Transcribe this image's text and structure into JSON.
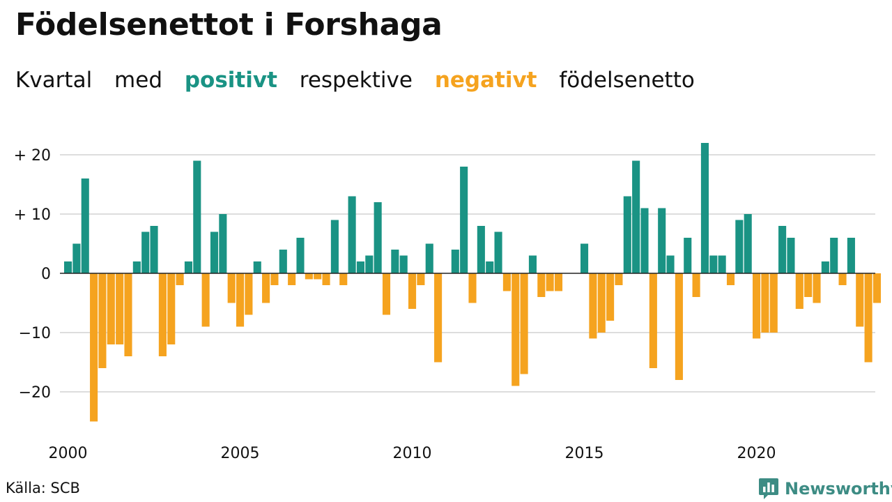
{
  "title": "Födelsenettot i Forshaga",
  "subtitle": {
    "w1": "Kvartal",
    "w2": "med",
    "w3": "positivt",
    "w4": "respektive",
    "w5": "negativt",
    "w6": "födelsenetto"
  },
  "colors": {
    "positive": "#1a9384",
    "negative": "#f5a31f",
    "grid": "#dddddd",
    "text": "#111111",
    "brand": "#3d8c84"
  },
  "source": "Källa: SCB",
  "brand": {
    "name": "Newsworthy",
    "icon": "newsworthy-logo-icon"
  },
  "chart_data": {
    "type": "bar",
    "title": "Födelsenettot i Forshaga",
    "subtitle": "Kvartal med positivt respektive negativt födelsenetto",
    "xlabel": "",
    "ylabel": "",
    "frequency": "quarterly",
    "x": [
      "2000Q1",
      "2000Q2",
      "2000Q3",
      "2000Q4",
      "2001Q1",
      "2001Q2",
      "2001Q3",
      "2001Q4",
      "2002Q1",
      "2002Q2",
      "2002Q3",
      "2002Q4",
      "2003Q1",
      "2003Q2",
      "2003Q3",
      "2003Q4",
      "2004Q1",
      "2004Q2",
      "2004Q3",
      "2004Q4",
      "2005Q1",
      "2005Q2",
      "2005Q3",
      "2005Q4",
      "2006Q1",
      "2006Q2",
      "2006Q3",
      "2006Q4",
      "2007Q1",
      "2007Q2",
      "2007Q3",
      "2007Q4",
      "2008Q1",
      "2008Q2",
      "2008Q3",
      "2008Q4",
      "2009Q1",
      "2009Q2",
      "2009Q3",
      "2009Q4",
      "2010Q1",
      "2010Q2",
      "2010Q3",
      "2010Q4",
      "2011Q1",
      "2011Q2",
      "2011Q3",
      "2011Q4",
      "2012Q1",
      "2012Q2",
      "2012Q3",
      "2012Q4",
      "2013Q1",
      "2013Q2",
      "2013Q3",
      "2013Q4",
      "2014Q1",
      "2014Q2",
      "2014Q3",
      "2014Q4",
      "2015Q1",
      "2015Q2",
      "2015Q3",
      "2015Q4",
      "2016Q1",
      "2016Q2",
      "2016Q3",
      "2016Q4",
      "2017Q1",
      "2017Q2",
      "2017Q3",
      "2017Q4",
      "2018Q1",
      "2018Q2",
      "2018Q3",
      "2018Q4",
      "2019Q1",
      "2019Q2",
      "2019Q3",
      "2019Q4",
      "2020Q1",
      "2020Q2",
      "2020Q3",
      "2020Q4",
      "2021Q1",
      "2021Q2",
      "2021Q3",
      "2021Q4",
      "2022Q1",
      "2022Q2",
      "2022Q3",
      "2022Q4",
      "2023Q1",
      "2023Q2",
      "2023Q3",
      "2023Q4"
    ],
    "values": [
      2,
      5,
      16,
      -25,
      -16,
      -12,
      -12,
      -14,
      2,
      7,
      8,
      -14,
      -12,
      -2,
      2,
      19,
      -9,
      7,
      10,
      -5,
      -9,
      -7,
      2,
      -5,
      -2,
      4,
      -2,
      6,
      -1,
      -1,
      -2,
      9,
      -2,
      13,
      2,
      3,
      12,
      -7,
      4,
      3,
      -6,
      -2,
      5,
      -15,
      0,
      4,
      18,
      -5,
      8,
      2,
      7,
      -3,
      -19,
      -17,
      3,
      -4,
      -3,
      -3,
      0,
      0,
      5,
      -11,
      -10,
      -8,
      -2,
      13,
      19,
      11,
      -16,
      11,
      3,
      -18,
      6,
      -4,
      22,
      3,
      3,
      -2,
      9,
      10,
      -11,
      -10,
      -10,
      8,
      6,
      -6,
      -4,
      -5,
      2,
      6,
      -2,
      6,
      -9,
      -15,
      -5,
      0
    ],
    "xlim": [
      "2000Q1",
      "2023Q4"
    ],
    "ylim": [
      -28,
      24
    ],
    "y_ticks": [
      {
        "value": 20,
        "label": "+ 20"
      },
      {
        "value": 10,
        "label": "+ 10"
      },
      {
        "value": 0,
        "label": "0"
      },
      {
        "value": -10,
        "label": "−10"
      },
      {
        "value": -20,
        "label": "−20"
      }
    ],
    "x_ticks": [
      {
        "value": "2000Q1",
        "label": "2000"
      },
      {
        "value": "2005Q1",
        "label": "2005"
      },
      {
        "value": "2010Q1",
        "label": "2010"
      },
      {
        "value": "2015Q1",
        "label": "2015"
      },
      {
        "value": "2020Q1",
        "label": "2020"
      }
    ],
    "color_rule": "positive values use colors.positive, negative values use colors.negative",
    "grid": "horizontal",
    "legend": "none (colour key given in subtitle)"
  }
}
